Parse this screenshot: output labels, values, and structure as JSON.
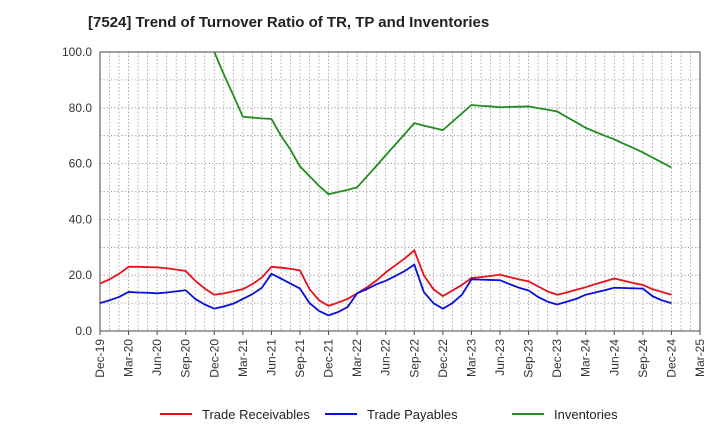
{
  "chart_data": {
    "type": "line",
    "title": "[7524]  Trend of Turnover Ratio of TR, TP and Inventories",
    "xlabel": "",
    "ylabel": "",
    "ylim": [
      0,
      100
    ],
    "yticks": [
      "0.0",
      "20.0",
      "40.0",
      "60.0",
      "80.0",
      "100.0"
    ],
    "xtick_labels": [
      "Dec-19",
      "Mar-20",
      "Jun-20",
      "Sep-20",
      "Dec-20",
      "Mar-21",
      "Jun-21",
      "Sep-21",
      "Dec-21",
      "Mar-22",
      "Jun-22",
      "Sep-22",
      "Dec-22",
      "Mar-23",
      "Jun-23",
      "Sep-23",
      "Dec-23",
      "Mar-24",
      "Jun-24",
      "Sep-24",
      "Dec-24",
      "Mar-25"
    ],
    "grid": true,
    "legend_position": "bottom",
    "x": [
      "2019-12",
      "2020-01",
      "2020-02",
      "2020-03",
      "2020-04",
      "2020-05",
      "2020-06",
      "2020-07",
      "2020-08",
      "2020-09",
      "2020-10",
      "2020-11",
      "2020-12",
      "2021-01",
      "2021-02",
      "2021-03",
      "2021-04",
      "2021-05",
      "2021-06",
      "2021-07",
      "2021-08",
      "2021-09",
      "2021-10",
      "2021-11",
      "2021-12",
      "2022-01",
      "2022-02",
      "2022-03",
      "2022-04",
      "2022-05",
      "2022-06",
      "2022-07",
      "2022-08",
      "2022-09",
      "2022-10",
      "2022-11",
      "2022-12",
      "2023-01",
      "2023-02",
      "2023-03",
      "2023-04",
      "2023-05",
      "2023-06",
      "2023-07",
      "2023-08",
      "2023-09",
      "2023-10",
      "2023-11",
      "2023-12",
      "2024-01",
      "2024-02",
      "2024-03",
      "2024-04",
      "2024-05",
      "2024-06",
      "2024-07",
      "2024-08",
      "2024-09",
      "2024-10",
      "2024-11",
      "2024-12"
    ],
    "series": [
      {
        "name": "Trade Receivables",
        "color": "#e8101a",
        "values": [
          17.0,
          18.5,
          20.5,
          23.0,
          23.0,
          22.9,
          22.8,
          22.5,
          22.0,
          21.5,
          18.0,
          15.2,
          13.0,
          13.5,
          14.2,
          15.0,
          16.8,
          19.2,
          23.0,
          22.7,
          22.3,
          21.7,
          15.0,
          11.0,
          9.0,
          10.2,
          11.5,
          13.5,
          15.6,
          18.0,
          21.0,
          23.5,
          26.0,
          28.9,
          20.0,
          15.0,
          12.5,
          14.5,
          16.5,
          19.0,
          19.3,
          19.7,
          20.2,
          19.3,
          18.5,
          17.8,
          16.0,
          14.2,
          13.0,
          13.8,
          14.8,
          15.7,
          16.8,
          17.8,
          18.8,
          18.0,
          17.2,
          16.5,
          15.0,
          14.0,
          13.0
        ]
      },
      {
        "name": "Trade Payables",
        "color": "#0a10d8",
        "values": [
          10.0,
          11.0,
          12.2,
          14.0,
          13.8,
          13.7,
          13.5,
          13.8,
          14.2,
          14.6,
          11.5,
          9.5,
          8.0,
          8.8,
          9.8,
          11.5,
          13.2,
          15.5,
          20.5,
          18.8,
          17.0,
          15.2,
          10.0,
          7.2,
          5.6,
          6.8,
          8.6,
          13.5,
          15.0,
          16.7,
          18.0,
          19.7,
          21.5,
          23.8,
          14.0,
          10.0,
          8.0,
          10.0,
          13.0,
          18.5,
          18.4,
          18.3,
          18.2,
          16.8,
          15.5,
          14.5,
          12.2,
          10.5,
          9.5,
          10.5,
          11.5,
          13.0,
          13.8,
          14.6,
          15.5,
          15.4,
          15.3,
          15.2,
          12.5,
          11.0,
          10.0
        ]
      },
      {
        "name": "Inventories",
        "color": "#238b1f",
        "values": [
          null,
          null,
          null,
          null,
          null,
          null,
          null,
          null,
          null,
          null,
          null,
          null,
          100.0,
          92.0,
          84.5,
          76.8,
          76.5,
          76.2,
          76.0,
          70.0,
          65.0,
          59.0,
          55.5,
          52.0,
          49.0,
          49.8,
          50.6,
          51.5,
          55.3,
          59.1,
          63.0,
          66.8,
          70.6,
          74.5,
          73.6,
          72.8,
          72.0,
          75.0,
          78.0,
          81.0,
          80.7,
          80.5,
          80.2,
          80.3,
          80.4,
          80.5,
          79.9,
          79.3,
          78.7,
          76.7,
          74.8,
          72.8,
          71.4,
          70.0,
          68.7,
          67.1,
          65.6,
          64.0,
          62.2,
          60.4,
          58.6
        ]
      }
    ]
  }
}
